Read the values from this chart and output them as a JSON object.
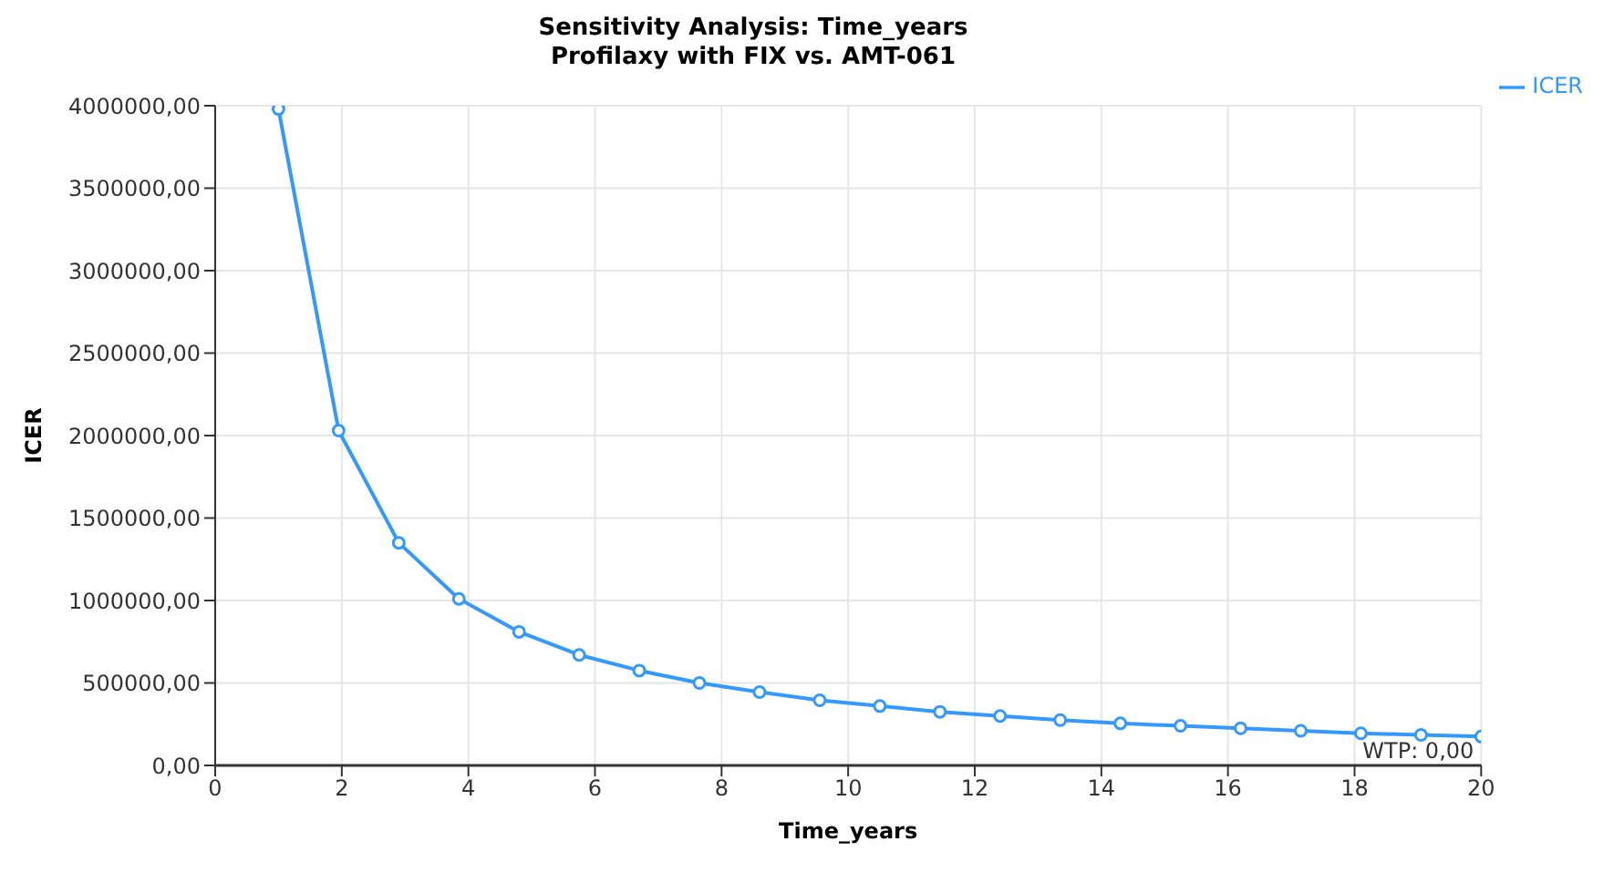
{
  "chart_data": {
    "type": "line",
    "title": "Sensitivity Analysis: Time_years",
    "subtitle": "Profilaxy with FIX vs. AMT-061",
    "xlabel": "Time_years",
    "ylabel": "ICER",
    "x": [
      1,
      1.95,
      2.9,
      3.85,
      4.8,
      5.75,
      6.7,
      7.65,
      8.6,
      9.55,
      10.5,
      11.45,
      12.4,
      13.35,
      14.3,
      15.25,
      16.2,
      17.15,
      18.1,
      19.05,
      20
    ],
    "series": [
      {
        "name": "ICER",
        "color": "#3399ff",
        "values": [
          3980000,
          2030000,
          1350000,
          1010000,
          810000,
          670000,
          575000,
          500000,
          445000,
          395000,
          360000,
          325000,
          300000,
          275000,
          255000,
          240000,
          225000,
          210000,
          195000,
          185000,
          175000
        ]
      }
    ],
    "xlim": [
      0,
      20
    ],
    "xticks": [
      0,
      2,
      4,
      6,
      8,
      10,
      12,
      14,
      16,
      18,
      20
    ],
    "ylim": [
      0,
      4000000
    ],
    "yticks": [
      {
        "value": 0,
        "label": "0,00"
      },
      {
        "value": 500000,
        "label": "500000,00"
      },
      {
        "value": 1000000,
        "label": "1000000,00"
      },
      {
        "value": 1500000,
        "label": "1500000,00"
      },
      {
        "value": 2000000,
        "label": "2000000,00"
      },
      {
        "value": 2500000,
        "label": "2500000,00"
      },
      {
        "value": 3000000,
        "label": "3000000,00"
      },
      {
        "value": 3500000,
        "label": "3500000,00"
      },
      {
        "value": 4000000,
        "label": "4000000,00"
      }
    ],
    "ref_lines": [
      {
        "axis": "y",
        "value": 0,
        "label": "WTP: 0,00",
        "color": "#333333"
      }
    ],
    "grid": true,
    "legend": "top right",
    "marker": "circle",
    "line_style": "solid"
  }
}
